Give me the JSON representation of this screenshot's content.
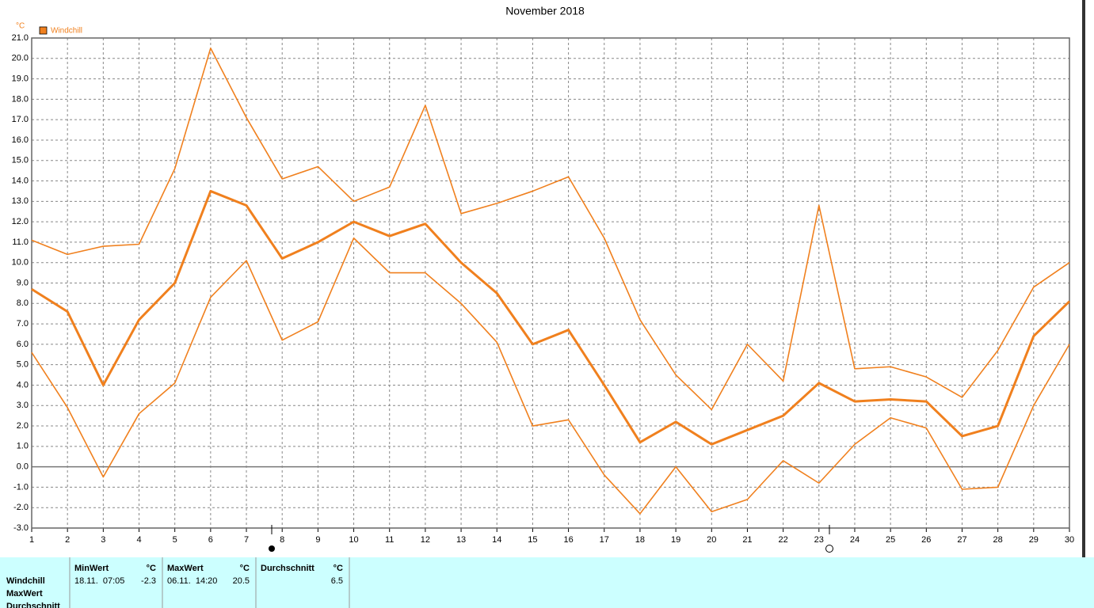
{
  "chart_data": {
    "type": "line",
    "title": "November 2018",
    "y_label": "°C",
    "x": [
      1,
      2,
      3,
      4,
      5,
      6,
      7,
      8,
      9,
      10,
      11,
      12,
      13,
      14,
      15,
      16,
      17,
      18,
      19,
      20,
      21,
      22,
      23,
      24,
      25,
      26,
      27,
      28,
      29,
      30
    ],
    "xlim": [
      1,
      30
    ],
    "xticks": [
      1,
      2,
      3,
      4,
      5,
      6,
      7,
      8,
      9,
      10,
      11,
      12,
      13,
      14,
      15,
      16,
      17,
      18,
      19,
      20,
      21,
      22,
      23,
      24,
      25,
      26,
      27,
      28,
      29,
      30
    ],
    "ylim": [
      -3,
      21
    ],
    "yticks": [
      {
        "value": 21,
        "label": "21.0"
      },
      {
        "value": 20,
        "label": "20.0"
      },
      {
        "value": 19,
        "label": "19.0"
      },
      {
        "value": 18,
        "label": "18.0"
      },
      {
        "value": 17,
        "label": "17.0"
      },
      {
        "value": 16,
        "label": "16.0"
      },
      {
        "value": 15,
        "label": "15.0"
      },
      {
        "value": 14,
        "label": "14.0"
      },
      {
        "value": 13,
        "label": "13.0"
      },
      {
        "value": 12,
        "label": "12.0"
      },
      {
        "value": 11,
        "label": "11.0"
      },
      {
        "value": 10,
        "label": "10.0"
      },
      {
        "value": 9,
        "label": "9.0"
      },
      {
        "value": 8,
        "label": "8.0"
      },
      {
        "value": 7,
        "label": "7.0"
      },
      {
        "value": 6,
        "label": "6.0"
      },
      {
        "value": 5,
        "label": "5.0"
      },
      {
        "value": 4,
        "label": "4.0"
      },
      {
        "value": 3,
        "label": "3.0"
      },
      {
        "value": 2,
        "label": "2.0"
      },
      {
        "value": 1,
        "label": "1.0"
      },
      {
        "value": 0,
        "label": "0.0"
      },
      {
        "value": -1,
        "label": "-1.0"
      },
      {
        "value": -2,
        "label": "-2.0"
      },
      {
        "value": -3,
        "label": "-3.0"
      }
    ],
    "grid": true,
    "legend": "top-left",
    "series": [
      {
        "color": "#f0801e",
        "values": [
          11.1,
          10.4,
          10.8,
          10.9,
          14.6,
          20.5,
          17.1,
          14.1,
          14.7,
          13.0,
          13.7,
          17.7,
          12.4,
          12.9,
          13.5,
          14.2,
          11.2,
          7.2,
          4.5,
          2.8,
          6.0,
          4.2,
          12.8,
          4.8,
          4.9,
          4.4,
          3.4,
          5.7,
          8.8,
          10.0
        ]
      },
      {
        "name": "Windchill",
        "color": "#f0801e",
        "values": [
          8.7,
          7.6,
          4.0,
          7.2,
          9.0,
          13.5,
          12.8,
          10.2,
          11.0,
          12.0,
          11.3,
          11.9,
          10.0,
          8.5,
          6.0,
          6.7,
          4.0,
          1.2,
          2.2,
          1.1,
          1.8,
          2.5,
          4.1,
          3.2,
          3.3,
          3.2,
          1.5,
          2.0,
          6.4,
          8.1
        ]
      },
      {
        "color": "#f0801e",
        "values": [
          5.6,
          2.9,
          -0.5,
          2.6,
          4.1,
          8.3,
          10.1,
          6.2,
          7.1,
          11.2,
          9.5,
          9.5,
          8.0,
          6.1,
          2.0,
          2.3,
          -0.4,
          -2.3,
          0.0,
          -2.2,
          -1.6,
          0.3,
          -0.8,
          1.1,
          2.4,
          1.9,
          -1.1,
          -1.0,
          3.0,
          6.0
        ]
      }
    ]
  },
  "table": {
    "row_labels": [
      "Windchill",
      "MaxWert",
      "Durchschnitt"
    ],
    "columns": [
      {
        "header": "MinWert",
        "unit": "°C",
        "time": "18.11.  07:05",
        "value": -2.3
      },
      {
        "header": "MaxWert",
        "unit": "°C",
        "time": "06.11.  14:20",
        "value": 20.5
      },
      {
        "header": "Durchschnitt",
        "unit": "°C",
        "value": 6.5
      }
    ]
  }
}
